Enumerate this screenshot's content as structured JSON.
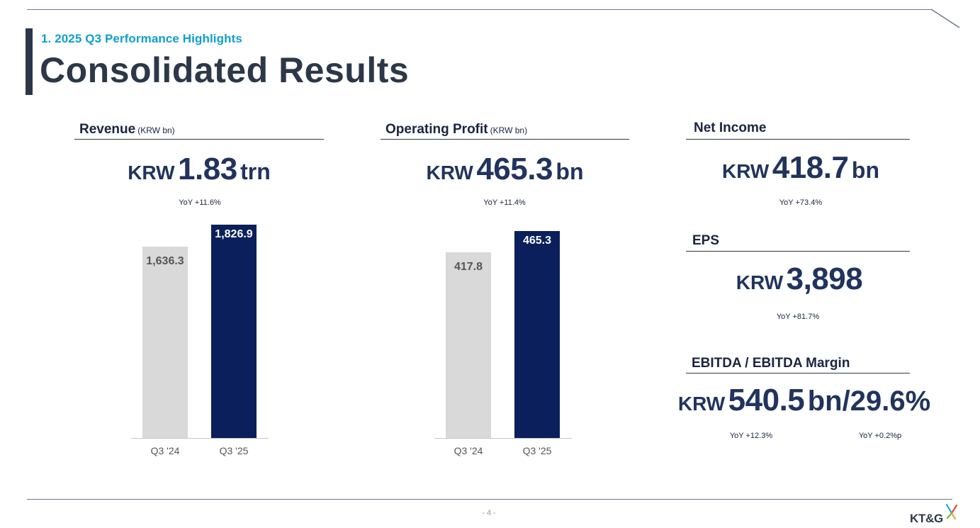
{
  "header": {
    "subtitle": "1. 2025 Q3 Performance Highlights",
    "title": "Consolidated Results"
  },
  "revenue": {
    "heading": "Revenue",
    "unit": "(KRW bn)",
    "prefix": "KRW",
    "value": "1.83",
    "suffix": "trn",
    "yoy": "YoY +11.6%"
  },
  "operating_profit": {
    "heading": "Operating Profit",
    "unit": "(KRW bn)",
    "prefix": "KRW",
    "value": "465.3",
    "suffix": "bn",
    "yoy": "YoY +11.4%"
  },
  "net_income": {
    "heading": "Net Income",
    "prefix": "KRW",
    "value": "418.7",
    "suffix": "bn",
    "yoy": "YoY +73.4%"
  },
  "eps": {
    "heading": "EPS",
    "prefix": "KRW",
    "value": "3,898",
    "yoy": "YoY +81.7%"
  },
  "ebitda": {
    "heading": "EBITDA / EBITDA Margin",
    "prefix": "KRW",
    "value": "540.5",
    "suffix": "bn/29.6%",
    "yoy_ebitda": "YoY +12.3%",
    "yoy_margin": "YoY +0.2%p"
  },
  "chart_data": [
    {
      "type": "bar",
      "categories": [
        "Q3 '24",
        "Q3 '25"
      ],
      "values": [
        1636.3,
        1826.9
      ],
      "value_labels": [
        "1,636.3",
        "1,826.9"
      ],
      "colors": [
        "#d9d9d9",
        "#0a1f5c"
      ],
      "label_colors": [
        "#555555",
        "#ffffff"
      ]
    },
    {
      "type": "bar",
      "categories": [
        "Q3 '24",
        "Q3 '25"
      ],
      "values": [
        417.8,
        465.3
      ],
      "value_labels": [
        "417.8",
        "465.3"
      ],
      "colors": [
        "#d9d9d9",
        "#0a1f5c"
      ],
      "label_colors": [
        "#555555",
        "#ffffff"
      ]
    }
  ],
  "footer": {
    "page_number": "- 4 -",
    "logo_text": "KT&G"
  },
  "colors": {
    "accent_blue": "#0e9fd0",
    "navy": "#0a1f5c",
    "gray_bar": "#d9d9d9",
    "title_dark": "#2c3849"
  }
}
